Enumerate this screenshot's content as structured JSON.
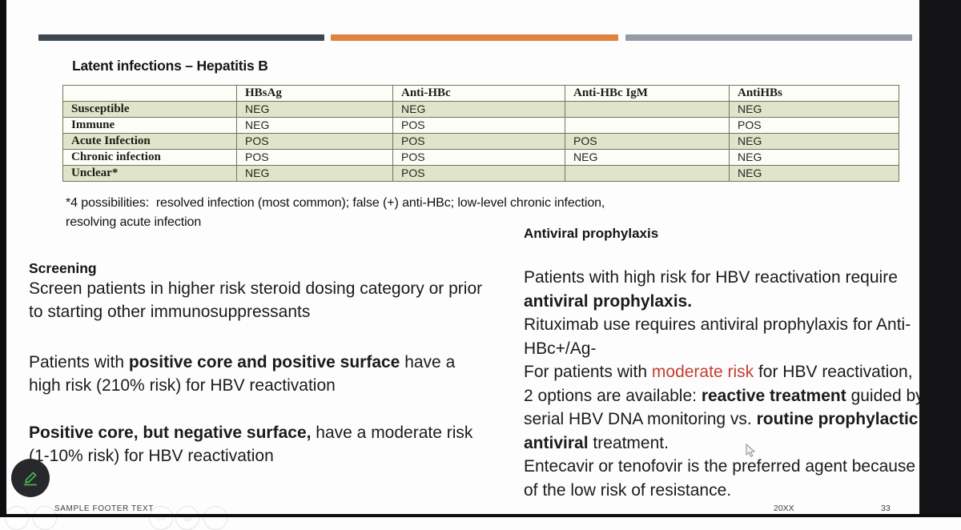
{
  "slide": {
    "title": "Latent infections – Hepatitis B",
    "accent_colors": {
      "dark_bar": "#3e4650",
      "orange_bar": "#e0823e",
      "gray_bar": "#959ca6"
    },
    "table": {
      "headers": [
        "",
        "HBsAg",
        "Anti-HBc",
        "Anti-HBc IgM",
        "AntiHBs"
      ],
      "rows": [
        {
          "label": "Susceptible",
          "values": [
            "NEG",
            "NEG",
            "",
            "NEG"
          ],
          "shaded": true
        },
        {
          "label": "Immune",
          "values": [
            "NEG",
            "POS",
            "",
            "POS"
          ],
          "shaded": false
        },
        {
          "label": "Acute Infection",
          "values": [
            "POS",
            "POS",
            "POS",
            "NEG"
          ],
          "shaded": true
        },
        {
          "label": "Chronic infection",
          "values": [
            "POS",
            "POS",
            "NEG",
            "NEG"
          ],
          "shaded": false
        },
        {
          "label": "Unclear*",
          "values": [
            "NEG",
            "POS",
            "",
            "NEG"
          ],
          "shaded": true
        }
      ],
      "shade_color": "#dfe4ca",
      "footnote": "*4 possibilities:  resolved infection (most common); false (+) anti-HBc; low-level chronic infection,\nresolving acute infection"
    },
    "screening": {
      "heading": "Screening",
      "p1": [
        {
          "t": "Screen patients in higher risk steroid dosing category or prior to starting other immunosuppressants"
        }
      ],
      "p2": [
        {
          "t": "Patients with "
        },
        {
          "t": "positive core and positive surface",
          "b": true
        },
        {
          "t": " have a  high risk (210% risk) for HBV reactivation"
        }
      ],
      "p3": [
        {
          "t": "Positive core, but negative surface,",
          "b": true
        },
        {
          "t": " have a moderate risk (1-10% risk) for HBV reactivation"
        }
      ]
    },
    "antiviral": {
      "heading": "Antiviral prophylaxis",
      "p1": [
        {
          "t": "Patients with high risk for HBV reactivation require "
        },
        {
          "t": "antiviral prophylaxis.",
          "b": true
        },
        {
          "t": "\nRituximab use requires antiviral prophylaxis for Anti- HBc+/Ag-\nFor patients with "
        },
        {
          "t": "moderate risk",
          "red": true
        },
        {
          "t": " for HBV reactivation, 2 options are available: "
        },
        {
          "t": "reactive treatment",
          "b": true
        },
        {
          "t": " guided by  serial HBV DNA monitoring vs. "
        },
        {
          "t": "routine prophylactic  antiviral",
          "b": true
        },
        {
          "t": " treatment.\nEntecavir or tenofovir is the preferred agent because of the low risk of resistance."
        }
      ],
      "red_color": "#c43e31"
    },
    "footer": {
      "text": "SAMPLE FOOTER TEXT",
      "year": "20XX",
      "page": "33"
    },
    "annotation_tool": {
      "icon": "pencil-icon",
      "pencil_color": "#4db04c",
      "button_bg": "#26282c"
    },
    "toolbar_icons": [
      "circle-button",
      "circle-button",
      "screen-share-icon",
      "camera-icon",
      "circle-button"
    ]
  }
}
